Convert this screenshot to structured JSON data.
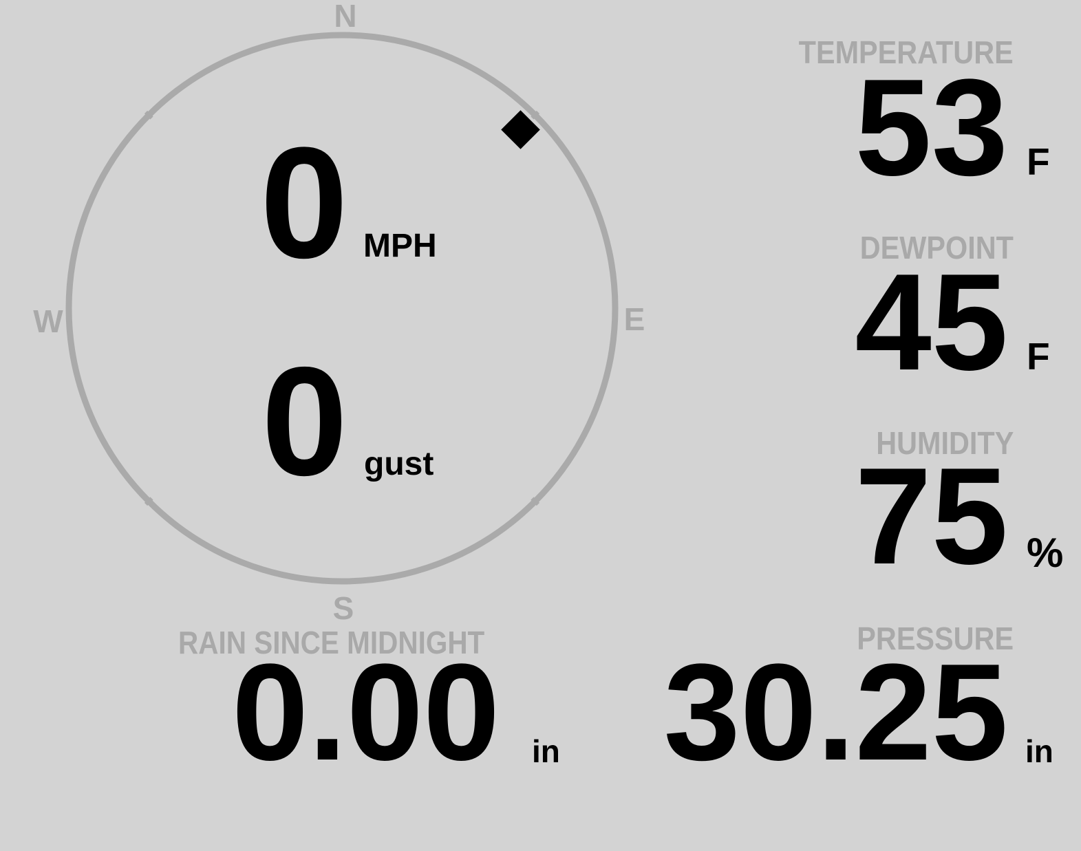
{
  "colors": {
    "background": "#d3d3d3",
    "label": "#a9a9a9",
    "value": "#000000",
    "ring": "#aaaaaa"
  },
  "wind": {
    "speed": "0",
    "speed_unit": "MPH",
    "gust": "0",
    "gust_unit": "gust",
    "direction_degrees": 45,
    "compass": {
      "n": "N",
      "e": "E",
      "s": "S",
      "w": "W"
    }
  },
  "temperature": {
    "label": "TEMPERATURE",
    "value": "53",
    "unit": "F"
  },
  "dewpoint": {
    "label": "DEWPOINT",
    "value": "45",
    "unit": "F"
  },
  "humidity": {
    "label": "HUMIDITY",
    "value": "75",
    "unit": "%"
  },
  "pressure": {
    "label": "PRESSURE",
    "value": "30.25",
    "unit": "in"
  },
  "rain": {
    "label": "RAIN SINCE MIDNIGHT",
    "value": "0.00",
    "unit": "in"
  }
}
